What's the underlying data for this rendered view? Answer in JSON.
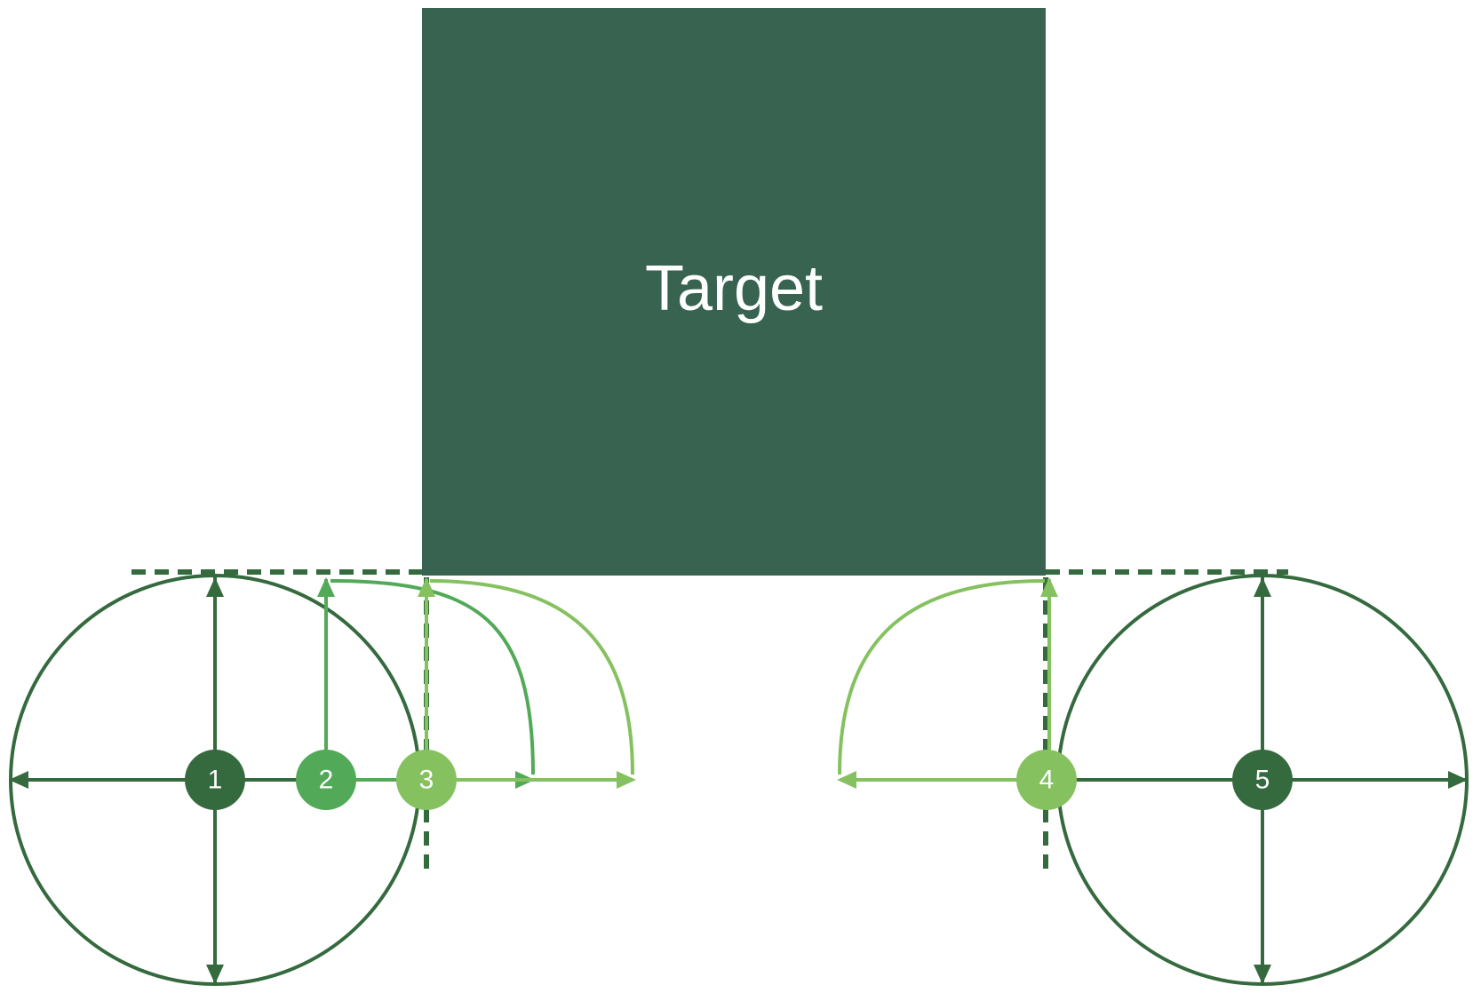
{
  "target": {
    "label": "Target"
  },
  "nodes": [
    {
      "id": "1",
      "label": "1",
      "shade": "dark"
    },
    {
      "id": "2",
      "label": "2",
      "shade": "medium"
    },
    {
      "id": "3",
      "label": "3",
      "shade": "light"
    },
    {
      "id": "4",
      "label": "4",
      "shade": "light"
    },
    {
      "id": "5",
      "label": "5",
      "shade": "dark"
    }
  ],
  "colors": {
    "dark": "#356a3e",
    "medium": "#52aa58",
    "light": "#86c160",
    "target_fill": "#376350",
    "background": "#ffffff"
  }
}
